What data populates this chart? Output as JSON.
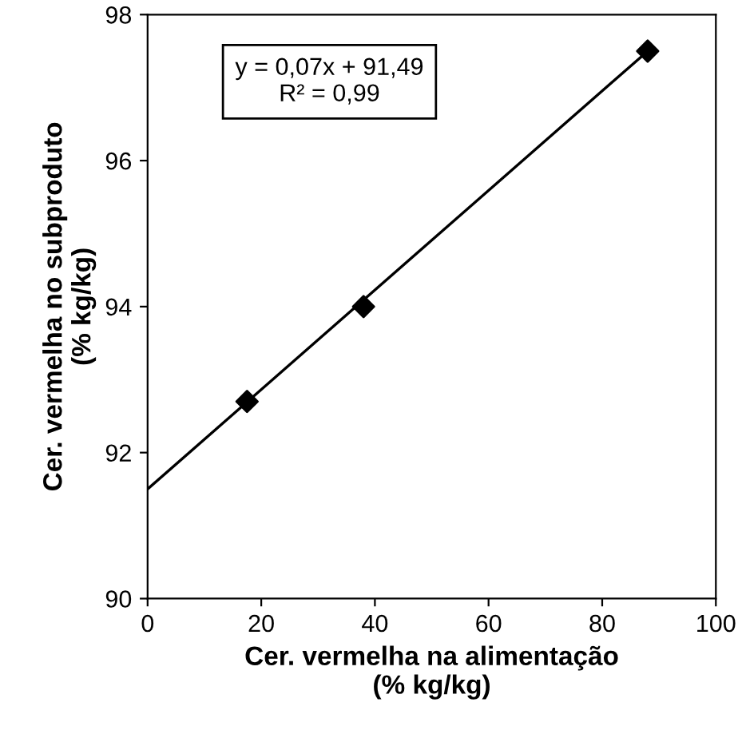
{
  "chart_data": {
    "type": "scatter",
    "xlabel": "Cer. vermelha na alimentação\n(% kg/kg)",
    "ylabel": "Cer. vermelha no subproduto\n(% kg/kg)",
    "series": [
      {
        "color": "#000000",
        "marker": "diamond",
        "x": [
          17.5,
          38,
          88
        ],
        "values": [
          92.7,
          94.0,
          97.5
        ]
      },
      {
        "type": "line",
        "color": "#000000",
        "marker": "none",
        "line_style": "solid",
        "x": [
          0,
          88
        ],
        "values": [
          91.5,
          97.5
        ]
      }
    ],
    "annotations": [
      "y = 0,07x + 91,49\nR² = 0,99"
    ],
    "xlim": [
      0,
      100
    ],
    "xticks": [
      0,
      20,
      40,
      60,
      80,
      100
    ],
    "ylim": [
      90,
      98
    ],
    "yticks": [
      90,
      92,
      94,
      96,
      98
    ],
    "grid": false,
    "legend": false
  }
}
